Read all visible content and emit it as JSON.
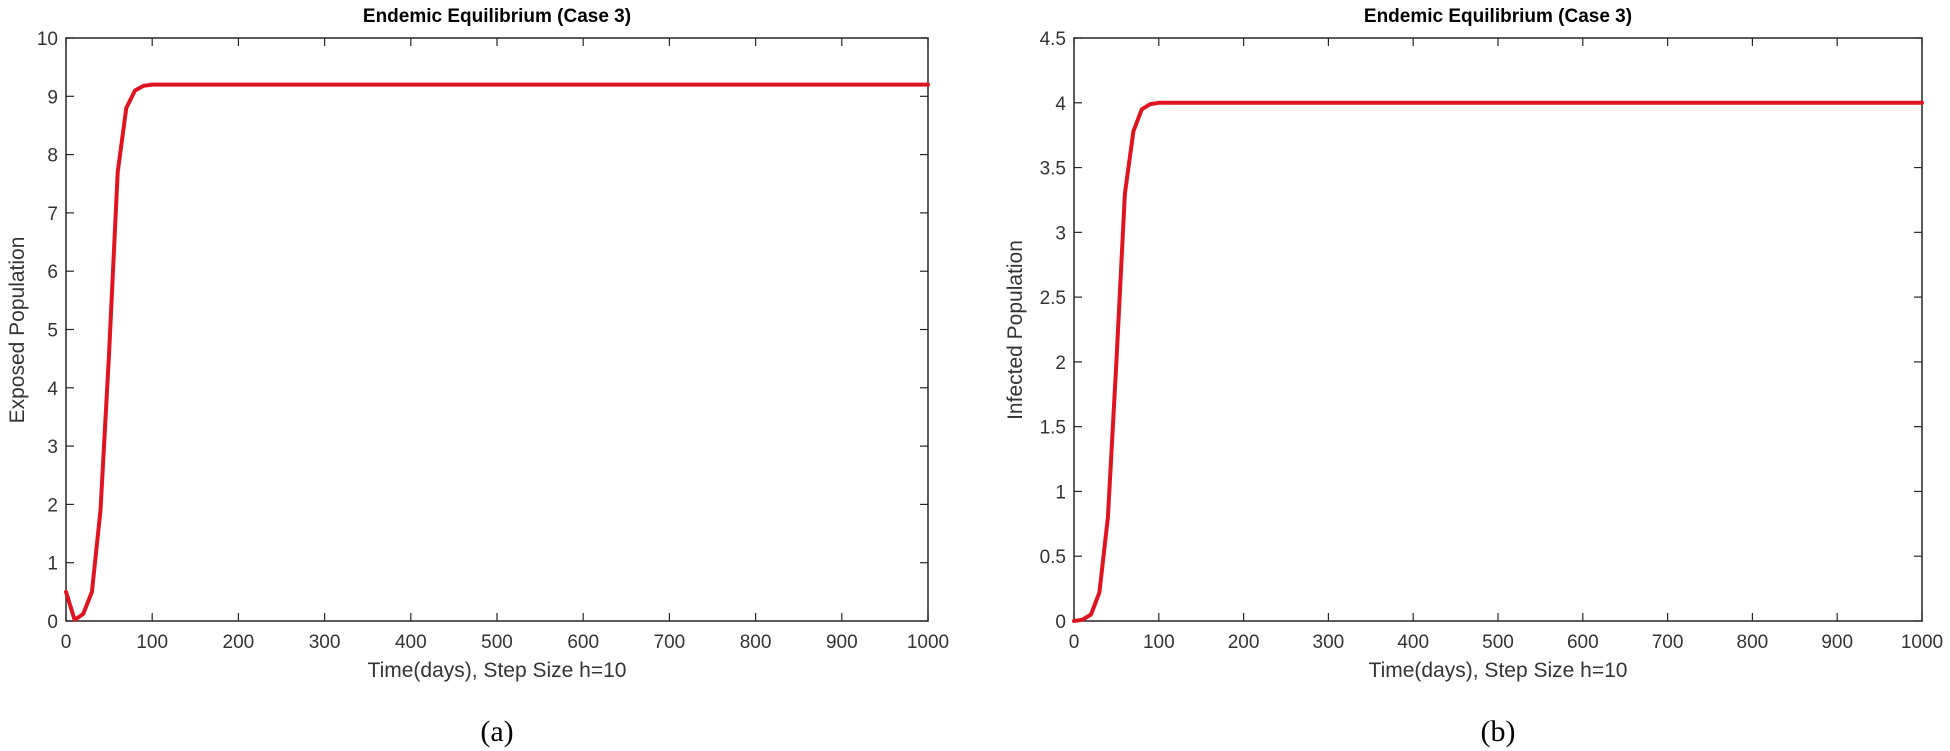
{
  "chart_data": [
    {
      "type": "line",
      "title": "Endemic Equilibrium (Case 3)",
      "xlabel": "Time(days), Step Size h=10",
      "ylabel": "Exposed Population",
      "xlim": [
        0,
        1000
      ],
      "ylim": [
        0,
        10
      ],
      "xticks": [
        0,
        100,
        200,
        300,
        400,
        500,
        600,
        700,
        800,
        900,
        1000
      ],
      "yticks": [
        0,
        1,
        2,
        3,
        4,
        5,
        6,
        7,
        8,
        9,
        10
      ],
      "caption": "(a)",
      "series": [
        {
          "name": "Exposed",
          "color": "#e0141e",
          "x": [
            0,
            10,
            20,
            30,
            40,
            50,
            60,
            70,
            80,
            90,
            100,
            120,
            150,
            200,
            300,
            400,
            500,
            600,
            700,
            800,
            900,
            1000
          ],
          "y": [
            0.5,
            0.02,
            0.12,
            0.5,
            1.9,
            4.6,
            7.7,
            8.8,
            9.1,
            9.18,
            9.2,
            9.2,
            9.2,
            9.2,
            9.2,
            9.2,
            9.2,
            9.2,
            9.2,
            9.2,
            9.2,
            9.2
          ]
        }
      ]
    },
    {
      "type": "line",
      "title": "Endemic Equilibrium (Case 3)",
      "xlabel": "Time(days), Step Size h=10",
      "ylabel": "Infected Population",
      "xlim": [
        0,
        1000
      ],
      "ylim": [
        0,
        4.5
      ],
      "xticks": [
        0,
        100,
        200,
        300,
        400,
        500,
        600,
        700,
        800,
        900,
        1000
      ],
      "yticks": [
        0,
        0.5,
        1,
        1.5,
        2,
        2.5,
        3,
        3.5,
        4,
        4.5
      ],
      "caption": "(b)",
      "series": [
        {
          "name": "Infected",
          "color": "#e0141e",
          "x": [
            0,
            10,
            20,
            30,
            40,
            50,
            60,
            70,
            80,
            90,
            100,
            120,
            150,
            200,
            300,
            400,
            500,
            600,
            700,
            800,
            900,
            1000
          ],
          "y": [
            0,
            0.01,
            0.05,
            0.22,
            0.8,
            2.0,
            3.3,
            3.78,
            3.95,
            3.99,
            4.0,
            4.0,
            4.0,
            4.0,
            4.0,
            4.0,
            4.0,
            4.0,
            4.0,
            4.0,
            4.0,
            4.0
          ]
        }
      ]
    }
  ]
}
